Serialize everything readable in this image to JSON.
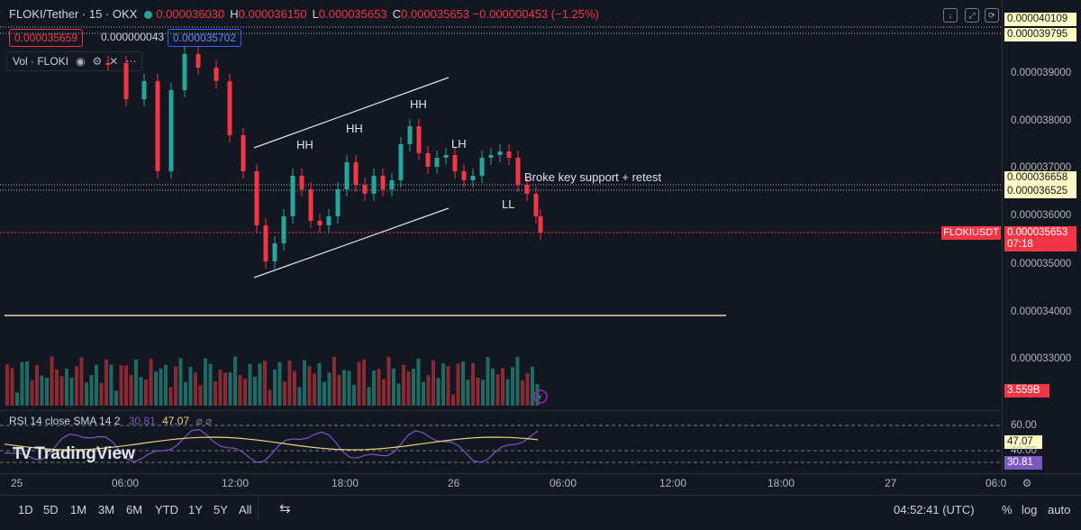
{
  "header": {
    "symbol": "FLOKI/Tether · 15 · OKX",
    "open_label": "O",
    "open": "0.000036030",
    "high_label": "H",
    "high": "0.000036150",
    "low_label": "L",
    "low": "0.000035653",
    "close_label": "C",
    "close": "0.000035653",
    "change": "−0.000000453 (−1.25%)",
    "bid": "0.000035659",
    "spread": "0.000000043",
    "ask": "0.000035702"
  },
  "volume_legend": {
    "label": "Vol · FLOKI",
    "eye_icon": "eye-icon",
    "settings_icon": "gear-icon",
    "close_icon": "close-icon",
    "more_icon": "more-icon"
  },
  "price_axis": {
    "ticks": [
      "0.000039000",
      "0.000038000",
      "0.000037000",
      "0.000036000",
      "0.000035000",
      "0.000034000",
      "0.000033000"
    ],
    "tags": {
      "top1": "0.000040109",
      "top2": "0.000039795",
      "res1": "0.000036658",
      "res2": "0.000036525",
      "symbol_tag": "FLOKIUSDT",
      "last_price": "0.000035653",
      "countdown": "07:18",
      "volume": "3.559B",
      "rsi_sma": "47.07",
      "rsi_val": "30.81"
    }
  },
  "annotations": {
    "hh1": "HH",
    "hh2": "HH",
    "hh3": "HH",
    "lh": "LH",
    "ll": "LL",
    "note": "Broke key support + retest"
  },
  "rsi": {
    "legend": "RSI 14 close SMA 14 2",
    "value": "30.81",
    "sma": "47.07",
    "level_hi": "60.00",
    "level_mid": "40.00"
  },
  "watermark": "TradingView",
  "time_axis": [
    "25",
    "06:00",
    "12:00",
    "18:00",
    "26",
    "06:00",
    "12:00",
    "18:00",
    "27",
    "06:0"
  ],
  "bottom": {
    "ranges": [
      "1D",
      "5D",
      "1M",
      "3M",
      "6M",
      "YTD",
      "1Y",
      "5Y",
      "All"
    ],
    "clock": "04:52:41 (UTC)",
    "percent": "%",
    "log": "log",
    "auto": "auto"
  },
  "colors": {
    "bg": "#131722",
    "up": "#26a69a",
    "down": "#f23645",
    "rsi": "#7e57c2",
    "sma": "#e8d27a",
    "line": "#e8d9a8"
  }
}
